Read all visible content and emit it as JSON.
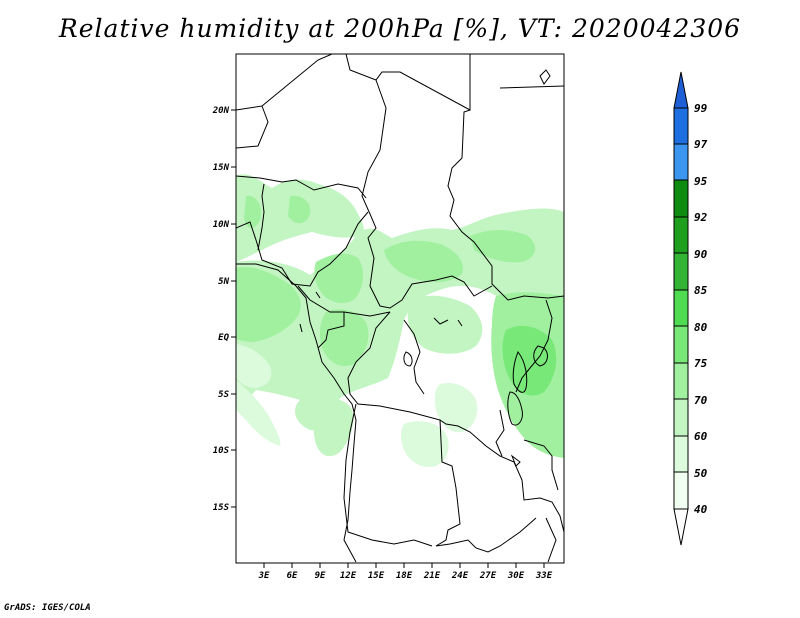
{
  "title": "Relative humidity at 200hPa [%], VT: 2020042306",
  "credit": "GrADS: IGES/COLA",
  "map": {
    "lat_labels": [
      "20N",
      "15N",
      "10N",
      "5N",
      "EQ",
      "5S",
      "10S",
      "15S"
    ],
    "lon_labels": [
      "3E",
      "6E",
      "9E",
      "12E",
      "15E",
      "18E",
      "21E",
      "24E",
      "27E",
      "30E",
      "33E"
    ]
  },
  "colorbar": {
    "labels": [
      "99",
      "97",
      "95",
      "92",
      "90",
      "85",
      "80",
      "75",
      "70",
      "60",
      "50",
      "40"
    ],
    "colors": [
      "#1e5fd6",
      "#1e6fe0",
      "#3c96f0",
      "#0f8c0f",
      "#1ea01e",
      "#34b434",
      "#50dc50",
      "#78e878",
      "#a0f0a0",
      "#c3f5c3",
      "#dcfadc",
      "#f0fff0"
    ]
  }
}
